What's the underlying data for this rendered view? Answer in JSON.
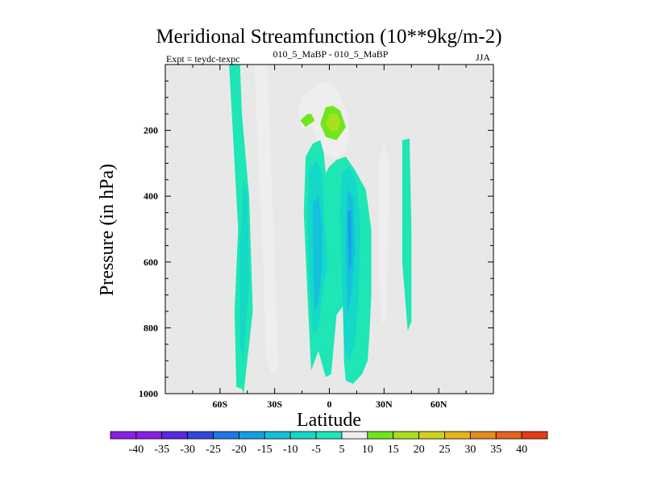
{
  "chart_data": {
    "type": "contour",
    "title": "Meridional Streamfunction (10**9kg/m-2)",
    "left_label": "Expt = teydc-texpc",
    "center_label": "010_5_MaBP - 010_5_MaBP",
    "right_label": "JJA",
    "xlabel": "Latitude",
    "ylabel": "Pressure (in hPa)",
    "xlim": [
      -90,
      90
    ],
    "ylim": [
      1000,
      0
    ],
    "x_ticks": [
      -60,
      -30,
      0,
      30,
      60
    ],
    "x_tick_labels": [
      "60S",
      "30S",
      "0",
      "30N",
      "60N"
    ],
    "y_ticks": [
      200,
      400,
      600,
      800,
      1000
    ],
    "y_tick_labels": [
      "200",
      "400",
      "600",
      "800",
      "1000"
    ],
    "colorbar": {
      "levels": [
        -40,
        -35,
        -30,
        -25,
        -20,
        -15,
        -10,
        -5,
        5,
        10,
        15,
        20,
        25,
        30,
        35,
        40
      ],
      "labels": [
        "-40",
        "-35",
        "-30",
        "-25",
        "-20",
        "-15",
        "-10",
        "-5",
        "5",
        "10",
        "15",
        "20",
        "25",
        "30",
        "35",
        "40"
      ],
      "colors": [
        "#8c1ee6",
        "#5a28dc",
        "#3246e1",
        "#1e78e6",
        "#14a0e6",
        "#14c0dc",
        "#14d8c8",
        "#1ee6b4",
        "#eeeeee",
        "#6ee61e",
        "#a8e01e",
        "#d2d21e",
        "#e6b41e",
        "#e68c1e",
        "#e6641e",
        "#e63c14"
      ]
    },
    "background_color": "#e8e8e8",
    "features": [
      {
        "name": "cell-a",
        "value": -5,
        "path": [
          [
            -47,
            1000
          ],
          [
            -42,
            750
          ],
          [
            -44,
            400
          ],
          [
            -48,
            150
          ],
          [
            -49,
            0
          ],
          [
            -55,
            0
          ],
          [
            -53,
            200
          ],
          [
            -50,
            500
          ],
          [
            -52,
            750
          ],
          [
            -51,
            980
          ],
          [
            -48,
            985
          ]
        ]
      },
      {
        "name": "cell-a-core",
        "value": -10,
        "path": [
          [
            -47,
            900
          ],
          [
            -44,
            650
          ],
          [
            -45,
            400
          ],
          [
            -47,
            350
          ],
          [
            -49,
            550
          ],
          [
            -49,
            850
          ]
        ]
      },
      {
        "name": "cell-b",
        "value": 5,
        "path": [
          [
            -28,
            920
          ],
          [
            -30,
            600
          ],
          [
            -32,
            300
          ],
          [
            -34,
            0
          ],
          [
            -41,
            0
          ],
          [
            -39,
            300
          ],
          [
            -36,
            620
          ],
          [
            -35,
            880
          ],
          [
            -32,
            940
          ]
        ]
      },
      {
        "name": "cell-c",
        "value": 5,
        "path": [
          [
            -7,
            60
          ],
          [
            -15,
            100
          ],
          [
            -17,
            140
          ],
          [
            -16,
            180
          ],
          [
            -14,
            200
          ],
          [
            -10,
            185
          ],
          [
            -6,
            230
          ],
          [
            -2,
            270
          ],
          [
            3,
            285
          ],
          [
            8,
            270
          ],
          [
            10,
            240
          ],
          [
            11,
            200
          ],
          [
            10,
            150
          ],
          [
            6,
            100
          ],
          [
            2,
            60
          ],
          [
            -3,
            55
          ]
        ]
      },
      {
        "name": "cell-c-l2",
        "value": 10,
        "path": [
          [
            -12,
            150
          ],
          [
            -16,
            170
          ],
          [
            -13,
            190
          ],
          [
            -8,
            170
          ],
          [
            -10,
            150
          ]
        ]
      },
      {
        "name": "cell-c-l3",
        "value": 10,
        "path": [
          [
            -2,
            130
          ],
          [
            -5,
            180
          ],
          [
            -2,
            220
          ],
          [
            4,
            230
          ],
          [
            9,
            190
          ],
          [
            6,
            140
          ],
          [
            2,
            125
          ]
        ]
      },
      {
        "name": "cell-c-l4",
        "value": 15,
        "path": [
          [
            0,
            150
          ],
          [
            -2,
            180
          ],
          [
            1,
            205
          ],
          [
            5,
            200
          ],
          [
            6,
            170
          ],
          [
            4,
            150
          ]
        ]
      },
      {
        "name": "cell-d",
        "value": -5,
        "path": [
          [
            -10,
            930
          ],
          [
            -12,
            700
          ],
          [
            -14,
            450
          ],
          [
            -13,
            280
          ],
          [
            -9,
            240
          ],
          [
            -5,
            230
          ],
          [
            -3,
            270
          ],
          [
            -2,
            330
          ],
          [
            0,
            310
          ],
          [
            4,
            290
          ],
          [
            9,
            280
          ],
          [
            14,
            320
          ],
          [
            20,
            380
          ],
          [
            23,
            500
          ],
          [
            23,
            700
          ],
          [
            22,
            820
          ],
          [
            21,
            900
          ],
          [
            18,
            940
          ],
          [
            13,
            970
          ],
          [
            9,
            960
          ],
          [
            8,
            900
          ],
          [
            8,
            730
          ],
          [
            4,
            760
          ],
          [
            1,
            940
          ],
          [
            -2,
            950
          ],
          [
            -6,
            870
          ],
          [
            -8,
            900
          ]
        ]
      },
      {
        "name": "cell-d-l2",
        "value": -10,
        "path": [
          [
            -9,
            820
          ],
          [
            -11,
            650
          ],
          [
            -12,
            450
          ],
          [
            -11,
            320
          ],
          [
            -7,
            290
          ],
          [
            -4,
            330
          ],
          [
            -3,
            450
          ],
          [
            -1,
            600
          ],
          [
            -4,
            700
          ],
          [
            -6,
            800
          ]
        ]
      },
      {
        "name": "cell-d-l3",
        "value": -10,
        "path": [
          [
            8,
            860
          ],
          [
            7,
            650
          ],
          [
            6,
            450
          ],
          [
            7,
            330
          ],
          [
            11,
            310
          ],
          [
            15,
            360
          ],
          [
            17,
            500
          ],
          [
            16,
            700
          ],
          [
            14,
            850
          ],
          [
            11,
            900
          ]
        ]
      },
      {
        "name": "cell-d-l4",
        "value": -15,
        "path": [
          [
            -8,
            750
          ],
          [
            -9,
            550
          ],
          [
            -9,
            420
          ],
          [
            -6,
            400
          ],
          [
            -4,
            480
          ],
          [
            -4,
            620
          ],
          [
            -6,
            720
          ]
        ]
      },
      {
        "name": "cell-d-l5",
        "value": -15,
        "path": [
          [
            10,
            760
          ],
          [
            9,
            550
          ],
          [
            10,
            380
          ],
          [
            13,
            400
          ],
          [
            14,
            560
          ],
          [
            12,
            700
          ]
        ]
      },
      {
        "name": "cell-d-l6",
        "value": -20,
        "path": [
          [
            11,
            630
          ],
          [
            10,
            450
          ],
          [
            12,
            440
          ],
          [
            12,
            600
          ]
        ]
      },
      {
        "name": "cell-e",
        "value": 5,
        "path": [
          [
            29,
            790
          ],
          [
            27,
            620
          ],
          [
            27,
            300
          ],
          [
            30,
            240
          ],
          [
            33,
            300
          ],
          [
            32,
            600
          ],
          [
            31,
            780
          ]
        ]
      },
      {
        "name": "cell-f",
        "value": -5,
        "path": [
          [
            43,
            810
          ],
          [
            40,
            600
          ],
          [
            40,
            230
          ],
          [
            44,
            225
          ],
          [
            45,
            500
          ],
          [
            45,
            780
          ]
        ]
      }
    ]
  }
}
